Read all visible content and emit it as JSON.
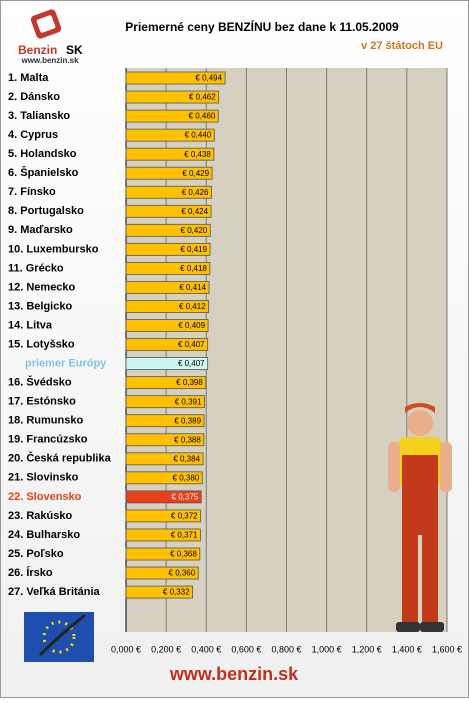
{
  "logo": {
    "name": "Benzin",
    "country": "SK",
    "url": "www.benzin.sk"
  },
  "footer": "www.benzin.sk",
  "chart_data": {
    "type": "hbar",
    "title": "Priemerné ceny BENZÍNU bez dane k 11.05.2009",
    "subtitle": "v 27 štátoch EU",
    "categories": [
      "1. Malta",
      "2. Dánsko",
      "3. Taliansko",
      "4. Cyprus",
      "5. Holandsko",
      "6. Španielsko",
      "7. Fínsko",
      "8. Portugalsko",
      "9. Maďarsko",
      "10. Luxembursko",
      "11. Grécko",
      "12. Nemecko",
      "13. Belgicko",
      "14. Litva",
      "15. Lotyšsko",
      "priemer Európy",
      "16. Švédsko",
      "17. Estónsko",
      "18. Rumunsko",
      "19. Francúzsko",
      "20. Česká republika",
      "21. Slovinsko",
      "22. Slovensko",
      "23. Rakúsko",
      "24. Bulharsko",
      "25. Poľsko",
      "26. Írsko",
      "27. Veľká Británia"
    ],
    "values": [
      0.494,
      0.462,
      0.46,
      0.44,
      0.438,
      0.429,
      0.426,
      0.424,
      0.42,
      0.419,
      0.418,
      0.414,
      0.412,
      0.409,
      0.407,
      0.407,
      0.398,
      0.391,
      0.389,
      0.388,
      0.384,
      0.38,
      0.375,
      0.372,
      0.371,
      0.368,
      0.36,
      0.332
    ],
    "value_labels": [
      "€ 0,494",
      "€ 0,462",
      "€ 0,460",
      "€ 0,440",
      "€ 0,438",
      "€ 0,429",
      "€ 0,426",
      "€ 0,424",
      "€ 0,420",
      "€ 0,419",
      "€ 0,418",
      "€ 0,414",
      "€ 0,412",
      "€ 0,409",
      "€ 0,407",
      "€ 0,407",
      "€ 0,398",
      "€ 0,391",
      "€ 0,389",
      "€ 0,388",
      "€ 0,384",
      "€ 0,380",
      "€ 0,375",
      "€ 0,372",
      "€ 0,371",
      "€ 0,368",
      "€ 0,360",
      "€ 0,332"
    ],
    "bar_colors": [
      "#ffc000",
      "#ffc000",
      "#ffc000",
      "#ffc000",
      "#ffc000",
      "#ffc000",
      "#ffc000",
      "#ffc000",
      "#ffc000",
      "#ffc000",
      "#ffc000",
      "#ffc000",
      "#ffc000",
      "#ffc000",
      "#ffc000",
      "#ccf5ee",
      "#ffc000",
      "#ffc000",
      "#ffc000",
      "#ffc000",
      "#ffc000",
      "#ffc000",
      "#e8401c",
      "#ffc000",
      "#ffc000",
      "#ffc000",
      "#ffc000",
      "#ffc000"
    ],
    "label_colors": [
      "#000",
      "#000",
      "#000",
      "#000",
      "#000",
      "#000",
      "#000",
      "#000",
      "#000",
      "#000",
      "#000",
      "#000",
      "#000",
      "#000",
      "#000",
      "#7fc4e8",
      "#000",
      "#000",
      "#000",
      "#000",
      "#000",
      "#000",
      "#e8401c",
      "#000",
      "#000",
      "#000",
      "#000",
      "#000"
    ],
    "xlim": [
      0,
      1.6
    ],
    "xticks": [
      {
        "value": 0,
        "label": "0,000 €"
      },
      {
        "value": 0.2,
        "label": "0,200 €"
      },
      {
        "value": 0.4,
        "label": "0,400 €"
      },
      {
        "value": 0.6,
        "label": "0,600 €"
      },
      {
        "value": 0.8,
        "label": "0,800 €"
      },
      {
        "value": 1.0,
        "label": "1,000 €"
      },
      {
        "value": 1.2,
        "label": "1,200 €"
      },
      {
        "value": 1.4,
        "label": "1,400 €"
      },
      {
        "value": 1.6,
        "label": "1,600 €"
      }
    ],
    "grid": true
  }
}
